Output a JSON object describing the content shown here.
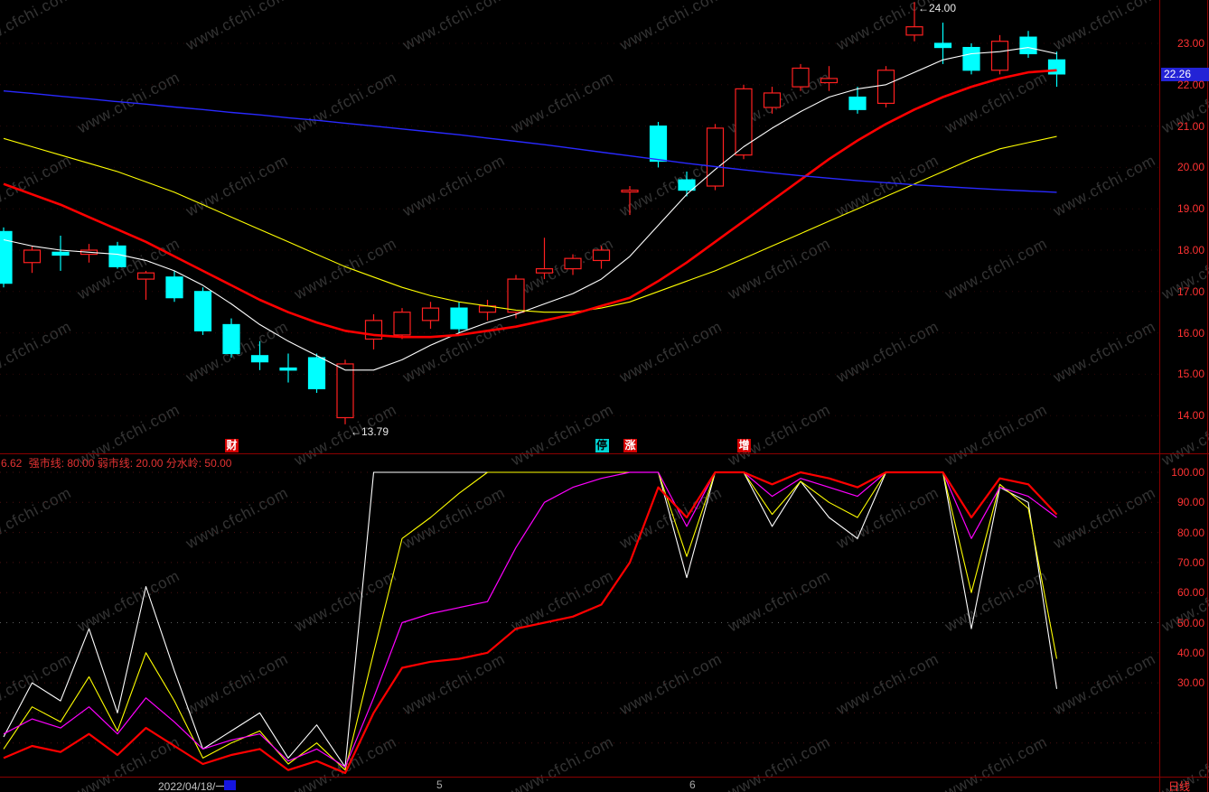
{
  "watermark": {
    "text": "www.cfchi.com"
  },
  "colors": {
    "up": "#ff2020",
    "down": "#00ffff",
    "frame": "#8a0000",
    "axis_text": "#ff3232",
    "price_tag_bg": "#2323d6",
    "ma_fast": "#ffffff",
    "ma_mid": "#ffff00",
    "ma_main": "#ff0000",
    "ma_slow": "#2929ff",
    "ind_fast": "#ffffff",
    "ind_mid": "#ffff00",
    "ind_slow": "#ff00ff",
    "ind_main": "#ff0000"
  },
  "price_panel": {
    "high_label": "←24.00",
    "low_label": "←13.79",
    "current_price": "22.26",
    "event_markers": [
      {
        "label": "财",
        "index": 8,
        "bg": "#d60000",
        "fg": "#ffffff"
      },
      {
        "label": "停",
        "index": 21,
        "bg": "#00d2d2",
        "fg": "#000000"
      },
      {
        "label": "涨",
        "index": 22,
        "bg": "#d60000",
        "fg": "#ffffff"
      },
      {
        "label": "增",
        "index": 26,
        "bg": "#d60000",
        "fg": "#ffffff"
      }
    ]
  },
  "price_axis": {
    "labels": [
      "23.00",
      "22.00",
      "21.00",
      "20.00",
      "19.00",
      "18.00",
      "17.00",
      "16.00",
      "15.00",
      "14.00"
    ]
  },
  "indicator_panel": {
    "header_value": "6.62",
    "header_text": "强市线: 80.00 弱市线: 20.00 分水岭: 50.00"
  },
  "indicator_axis": {
    "labels": [
      "100.00",
      "90.00",
      "80.00",
      "70.00",
      "60.00",
      "50.00",
      "40.00",
      "30.00"
    ]
  },
  "time_axis": {
    "date_label": "2022/04/18/一",
    "month_ticks": [
      {
        "label": "5",
        "x": 483
      },
      {
        "label": "6",
        "x": 763
      }
    ],
    "period_label": "日线"
  },
  "chart_data": [
    {
      "type": "candlestick",
      "title": "",
      "ylabel": "price",
      "ylim": [
        13.2,
        24.0
      ],
      "y_ticks": [
        14,
        15,
        16,
        17,
        18,
        19,
        20,
        21,
        22,
        23
      ],
      "grid": "dotted-horizontal",
      "last_close": 22.26,
      "annotated_high": 24.0,
      "annotated_low": 13.79,
      "candles_ohlc": [
        [
          18.45,
          18.55,
          17.1,
          17.2
        ],
        [
          17.7,
          18.1,
          17.45,
          18.0
        ],
        [
          17.95,
          18.35,
          17.5,
          17.88
        ],
        [
          17.9,
          18.15,
          17.7,
          18.0
        ],
        [
          18.1,
          18.2,
          17.55,
          17.6
        ],
        [
          17.3,
          17.5,
          16.8,
          17.45
        ],
        [
          17.35,
          17.5,
          16.75,
          16.85
        ],
        [
          17.0,
          17.1,
          15.95,
          16.05
        ],
        [
          16.2,
          16.35,
          15.4,
          15.5
        ],
        [
          15.45,
          15.8,
          15.1,
          15.3
        ],
        [
          15.15,
          15.5,
          14.8,
          15.1
        ],
        [
          15.4,
          15.5,
          14.55,
          14.65
        ],
        [
          13.95,
          15.35,
          13.79,
          15.25
        ],
        [
          15.85,
          16.45,
          15.6,
          16.3
        ],
        [
          15.95,
          16.6,
          15.85,
          16.5
        ],
        [
          16.3,
          16.75,
          16.1,
          16.6
        ],
        [
          16.6,
          16.75,
          16.0,
          16.1
        ],
        [
          16.5,
          16.8,
          16.3,
          16.65
        ],
        [
          16.5,
          17.4,
          16.35,
          17.3
        ],
        [
          17.45,
          18.3,
          17.3,
          17.55
        ],
        [
          17.55,
          17.9,
          17.4,
          17.8
        ],
        [
          17.75,
          18.1,
          17.55,
          18.0
        ],
        [
          19.45,
          19.55,
          18.85,
          19.45
        ],
        [
          21.0,
          21.1,
          20.0,
          20.15
        ],
        [
          19.7,
          19.9,
          19.3,
          19.45
        ],
        [
          19.55,
          21.05,
          19.45,
          20.95
        ],
        [
          20.3,
          22.0,
          20.2,
          21.9
        ],
        [
          21.45,
          21.95,
          21.3,
          21.8
        ],
        [
          21.95,
          22.5,
          21.85,
          22.4
        ],
        [
          22.05,
          22.45,
          21.85,
          22.15
        ],
        [
          21.7,
          21.95,
          21.3,
          21.4
        ],
        [
          21.55,
          22.45,
          21.45,
          22.35
        ],
        [
          23.2,
          24.0,
          23.05,
          23.4
        ],
        [
          23.0,
          23.5,
          22.5,
          22.9
        ],
        [
          22.9,
          23.0,
          22.25,
          22.35
        ],
        [
          22.35,
          23.2,
          22.25,
          23.05
        ],
        [
          23.15,
          23.3,
          22.65,
          22.75
        ],
        [
          22.6,
          22.8,
          21.95,
          22.26
        ]
      ],
      "overlays": [
        {
          "name": "ma-fast",
          "color": "#ffffff",
          "width": 1.1,
          "values": [
            18.25,
            18.1,
            18.0,
            17.95,
            17.9,
            17.75,
            17.5,
            17.15,
            16.7,
            16.2,
            15.8,
            15.45,
            15.1,
            15.1,
            15.35,
            15.7,
            16.0,
            16.25,
            16.45,
            16.7,
            16.95,
            17.3,
            17.85,
            18.6,
            19.35,
            19.95,
            20.5,
            20.95,
            21.35,
            21.7,
            21.9,
            22.0,
            22.3,
            22.6,
            22.75,
            22.8,
            22.9,
            22.75
          ]
        },
        {
          "name": "ma-mid",
          "color": "#ffff00",
          "width": 1.1,
          "values": [
            20.7,
            20.5,
            20.3,
            20.1,
            19.9,
            19.65,
            19.4,
            19.1,
            18.8,
            18.5,
            18.2,
            17.9,
            17.6,
            17.35,
            17.1,
            16.9,
            16.75,
            16.65,
            16.55,
            16.5,
            16.5,
            16.6,
            16.75,
            17.0,
            17.25,
            17.5,
            17.8,
            18.1,
            18.4,
            18.7,
            19.0,
            19.3,
            19.6,
            19.9,
            20.2,
            20.45,
            20.6,
            20.75
          ]
        },
        {
          "name": "ma-main",
          "color": "#ff0000",
          "width": 2.6,
          "values": [
            19.6,
            19.35,
            19.1,
            18.8,
            18.5,
            18.2,
            17.85,
            17.5,
            17.15,
            16.8,
            16.5,
            16.25,
            16.05,
            15.95,
            15.9,
            15.9,
            15.95,
            16.05,
            16.15,
            16.3,
            16.45,
            16.65,
            16.85,
            17.25,
            17.7,
            18.2,
            18.7,
            19.2,
            19.7,
            20.2,
            20.65,
            21.05,
            21.4,
            21.7,
            21.95,
            22.15,
            22.3,
            22.35
          ]
        },
        {
          "name": "ma-slow",
          "color": "#2929ff",
          "width": 1.4,
          "values": [
            21.85,
            21.79,
            21.72,
            21.66,
            21.59,
            21.53,
            21.46,
            21.4,
            21.33,
            21.27,
            21.2,
            21.14,
            21.07,
            21.0,
            20.93,
            20.86,
            20.79,
            20.71,
            20.63,
            20.55,
            20.46,
            20.37,
            20.28,
            20.19,
            20.1,
            20.02,
            19.94,
            19.87,
            19.8,
            19.74,
            19.68,
            19.63,
            19.58,
            19.54,
            19.5,
            19.46,
            19.43,
            19.4
          ]
        }
      ]
    },
    {
      "type": "line",
      "title": "",
      "ylabel": "strength",
      "ylim": [
        0,
        105
      ],
      "y_ticks": [
        10,
        20,
        30,
        40,
        50,
        60,
        70,
        80,
        90,
        100
      ],
      "labeled_ticks": [
        30,
        40,
        50,
        60,
        70,
        80,
        90,
        100
      ],
      "reference_levels": {
        "strong": 80,
        "weak": 20,
        "watershed": 50
      },
      "grid": "dotted-horizontal",
      "series": [
        {
          "name": "fast",
          "color": "#ffffff",
          "width": 1.1,
          "values": [
            12,
            30,
            24,
            48,
            20,
            62,
            34,
            8,
            14,
            20,
            5,
            16,
            2,
            100,
            100,
            100,
            100,
            100,
            100,
            100,
            100,
            100,
            100,
            100,
            65,
            100,
            100,
            82,
            97,
            85,
            78,
            100,
            100,
            100,
            48,
            95,
            90,
            28
          ]
        },
        {
          "name": "mid",
          "color": "#ffff00",
          "width": 1.1,
          "values": [
            8,
            22,
            17,
            32,
            14,
            40,
            24,
            5,
            10,
            14,
            3,
            10,
            1,
            40,
            78,
            85,
            93,
            100,
            100,
            100,
            100,
            100,
            100,
            100,
            72,
            100,
            100,
            86,
            97,
            90,
            85,
            100,
            100,
            100,
            60,
            96,
            88,
            38
          ]
        },
        {
          "name": "slow",
          "color": "#ff00ff",
          "width": 1.2,
          "values": [
            13,
            18,
            15,
            22,
            13,
            25,
            17,
            8,
            11,
            13,
            4,
            8,
            2,
            25,
            50,
            53,
            55,
            57,
            75,
            90,
            95,
            98,
            100,
            100,
            82,
            100,
            100,
            92,
            98,
            95,
            92,
            100,
            100,
            100,
            78,
            95,
            92,
            85
          ]
        },
        {
          "name": "main",
          "color": "#ff0000",
          "width": 2.2,
          "values": [
            5,
            9,
            7,
            13,
            6,
            15,
            9,
            3,
            6,
            8,
            1,
            4,
            0,
            20,
            35,
            37,
            38,
            40,
            48,
            50,
            52,
            56,
            70,
            95,
            85,
            100,
            100,
            96,
            100,
            98,
            95,
            100,
            100,
            100,
            85,
            98,
            96,
            86
          ]
        }
      ]
    }
  ]
}
